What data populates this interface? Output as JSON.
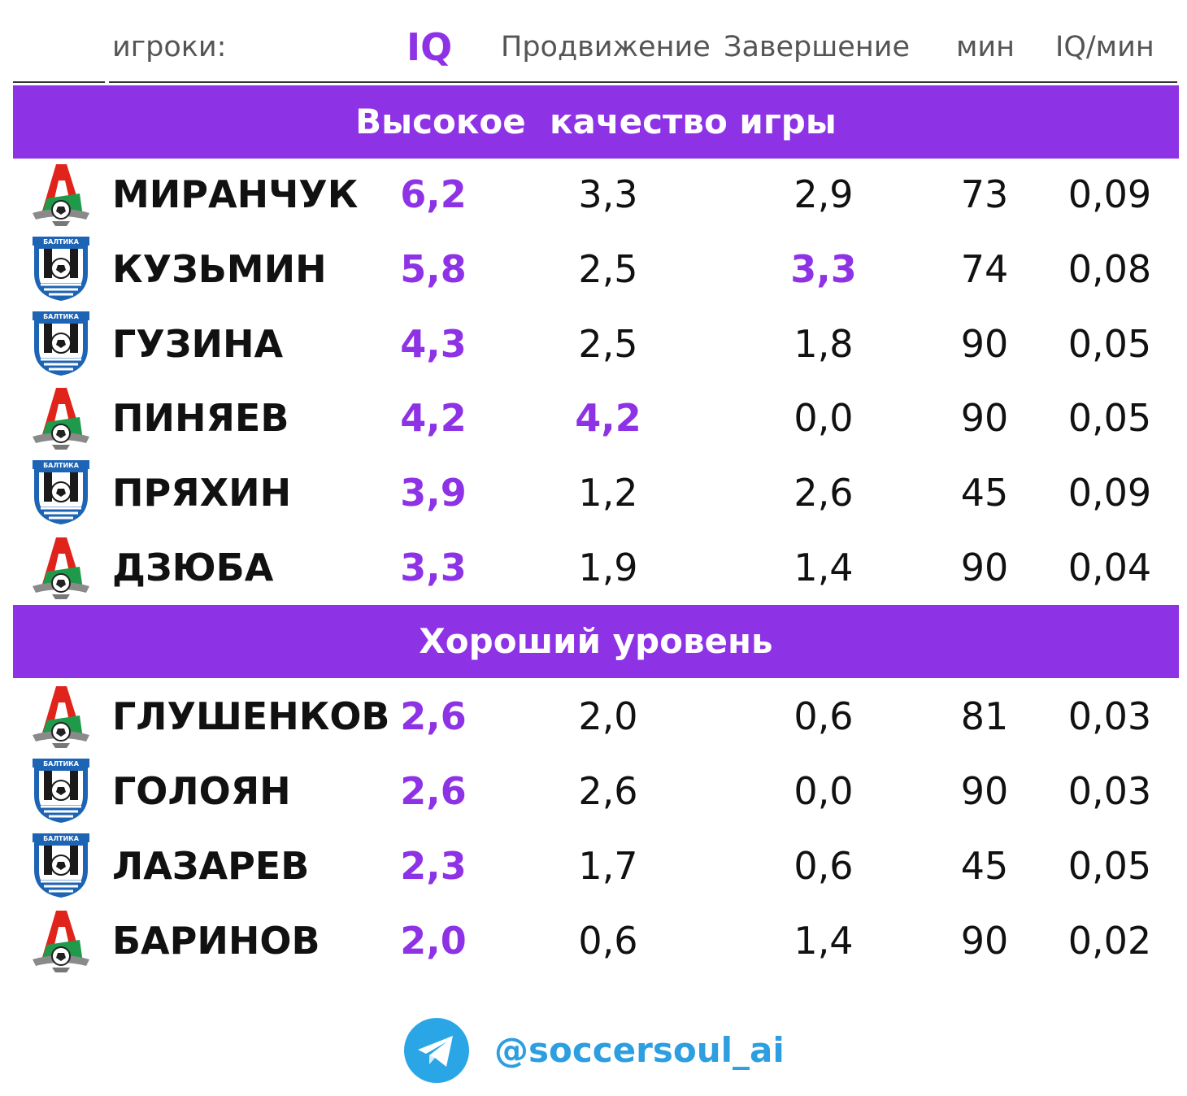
{
  "header": {
    "players_label": "игроки:",
    "iq_label": "IQ",
    "progression_label": "Продвижение",
    "finishing_label": "Завершение",
    "minutes_label": "мин",
    "iq_per_min_label": "IQ/мин"
  },
  "sections": [
    {
      "title": "Высокое  качество игры",
      "rows": [
        {
          "club_icon": "lokomotiv-logo-icon",
          "name": "МИРАНЧУК",
          "iq": "6,2",
          "progression": "3,3",
          "finishing": "2,9",
          "minutes": "73",
          "iq_per_min": "0,09",
          "highlight": "iq"
        },
        {
          "club_icon": "baltika-logo-icon",
          "name": "КУЗЬМИН",
          "iq": "5,8",
          "progression": "2,5",
          "finishing": "3,3",
          "minutes": "74",
          "iq_per_min": "0,08",
          "highlight": "finishing"
        },
        {
          "club_icon": "baltika-logo-icon",
          "name": "ГУЗИНА",
          "iq": "4,3",
          "progression": "2,5",
          "finishing": "1,8",
          "minutes": "90",
          "iq_per_min": "0,05",
          "highlight": "iq"
        },
        {
          "club_icon": "lokomotiv-logo-icon",
          "name": "ПИНЯЕВ",
          "iq": "4,2",
          "progression": "4,2",
          "finishing": "0,0",
          "minutes": "90",
          "iq_per_min": "0,05",
          "highlight": "progression"
        },
        {
          "club_icon": "baltika-logo-icon",
          "name": "ПРЯХИН",
          "iq": "3,9",
          "progression": "1,2",
          "finishing": "2,6",
          "minutes": "45",
          "iq_per_min": "0,09",
          "highlight": "iq"
        },
        {
          "club_icon": "lokomotiv-logo-icon",
          "name": "ДЗЮБА",
          "iq": "3,3",
          "progression": "1,9",
          "finishing": "1,4",
          "minutes": "90",
          "iq_per_min": "0,04",
          "highlight": "iq"
        }
      ]
    },
    {
      "title": "Хороший уровень",
      "rows": [
        {
          "club_icon": "lokomotiv-logo-icon",
          "name": "ГЛУШЕНКОВ",
          "iq": "2,6",
          "progression": "2,0",
          "finishing": "0,6",
          "minutes": "81",
          "iq_per_min": "0,03",
          "highlight": "iq"
        },
        {
          "club_icon": "baltika-logo-icon",
          "name": "ГОЛОЯН",
          "iq": "2,6",
          "progression": "2,6",
          "finishing": "0,0",
          "minutes": "90",
          "iq_per_min": "0,03",
          "highlight": "iq"
        },
        {
          "club_icon": "baltika-logo-icon",
          "name": "ЛАЗАРЕВ",
          "iq": "2,3",
          "progression": "1,7",
          "finishing": "0,6",
          "minutes": "45",
          "iq_per_min": "0,05",
          "highlight": "iq"
        },
        {
          "club_icon": "lokomotiv-logo-icon",
          "name": "БАРИНОВ",
          "iq": "2,0",
          "progression": "0,6",
          "finishing": "1,4",
          "minutes": "90",
          "iq_per_min": "0,02",
          "highlight": "iq"
        }
      ]
    }
  ],
  "logos": {
    "baltika_text": "БАЛТИКА"
  },
  "footer": {
    "icon": "telegram-icon",
    "handle": "@soccersoul_ai"
  },
  "colors": {
    "accent": "#8e32e6",
    "text": "#111111",
    "header_text": "#555555",
    "handle": "#2d9ee0",
    "lokomotiv_red": "#e0241b",
    "lokomotiv_green": "#1e9a4a",
    "baltika_blue": "#1e64b4"
  }
}
